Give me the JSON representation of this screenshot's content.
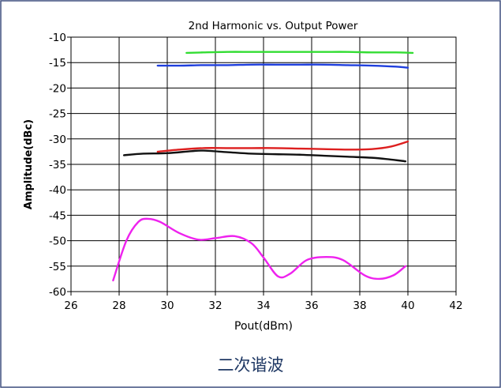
{
  "caption": "二次谐波",
  "colors": {
    "frame": "#3f4f7f",
    "axis": "#000000",
    "grid": "#000000"
  },
  "chart_data": {
    "type": "line",
    "title": "2nd Harmonic vs. Output Power",
    "xlabel": "Pout(dBm)",
    "ylabel": "Amplitude(dBc)",
    "xlim": [
      26,
      42
    ],
    "ylim": [
      -60,
      -10
    ],
    "xticks": [
      26,
      28,
      30,
      32,
      34,
      36,
      38,
      40,
      42
    ],
    "yticks": [
      -10,
      -15,
      -20,
      -25,
      -30,
      -35,
      -40,
      -45,
      -50,
      -55,
      -60
    ],
    "grid": true,
    "legend": "none",
    "series": [
      {
        "color": "#33dd33",
        "x": [
          30.8,
          31.5,
          32.5,
          33.5,
          34.5,
          35.5,
          36.5,
          37.5,
          38.5,
          39.5,
          40.2
        ],
        "y": [
          -13.1,
          -13.0,
          -12.9,
          -12.9,
          -12.9,
          -12.9,
          -12.9,
          -12.9,
          -13.0,
          -13.0,
          -13.1
        ]
      },
      {
        "color": "#1f3fdd",
        "x": [
          29.6,
          30.5,
          31.5,
          32.5,
          33.5,
          34.5,
          35.5,
          36.5,
          37.5,
          38.5,
          39.5,
          40.0
        ],
        "y": [
          -15.6,
          -15.6,
          -15.5,
          -15.5,
          -15.4,
          -15.4,
          -15.4,
          -15.4,
          -15.5,
          -15.6,
          -15.8,
          -16.0
        ]
      },
      {
        "color": "#dd1f1f",
        "x": [
          29.6,
          30.5,
          31.5,
          32.5,
          33.5,
          34.5,
          35.5,
          36.5,
          37.5,
          38.5,
          39.3,
          40.0
        ],
        "y": [
          -32.5,
          -32.1,
          -31.8,
          -31.8,
          -31.8,
          -31.8,
          -31.9,
          -32.0,
          -32.1,
          -32.0,
          -31.5,
          -30.5
        ]
      },
      {
        "color": "#111111",
        "x": [
          28.2,
          29.0,
          30.0,
          31.0,
          31.5,
          32.5,
          33.5,
          34.5,
          35.5,
          36.5,
          37.5,
          38.5,
          39.2,
          39.9
        ],
        "y": [
          -33.2,
          -32.9,
          -32.8,
          -32.4,
          -32.3,
          -32.6,
          -32.9,
          -33.0,
          -33.1,
          -33.3,
          -33.5,
          -33.7,
          -34.0,
          -34.4
        ]
      },
      {
        "color": "#ee22ee",
        "x": [
          27.75,
          28.3,
          28.8,
          29.2,
          29.7,
          30.5,
          31.3,
          32.0,
          32.8,
          33.5,
          34.0,
          34.6,
          35.1,
          35.8,
          36.6,
          37.3,
          38.2,
          38.8,
          39.4,
          39.9
        ],
        "y": [
          -57.8,
          -50.0,
          -46.3,
          -45.7,
          -46.3,
          -48.5,
          -49.8,
          -49.5,
          -49.1,
          -50.5,
          -53.3,
          -57.0,
          -56.5,
          -53.8,
          -53.2,
          -53.8,
          -56.8,
          -57.5,
          -56.8,
          -55.0
        ]
      }
    ]
  }
}
